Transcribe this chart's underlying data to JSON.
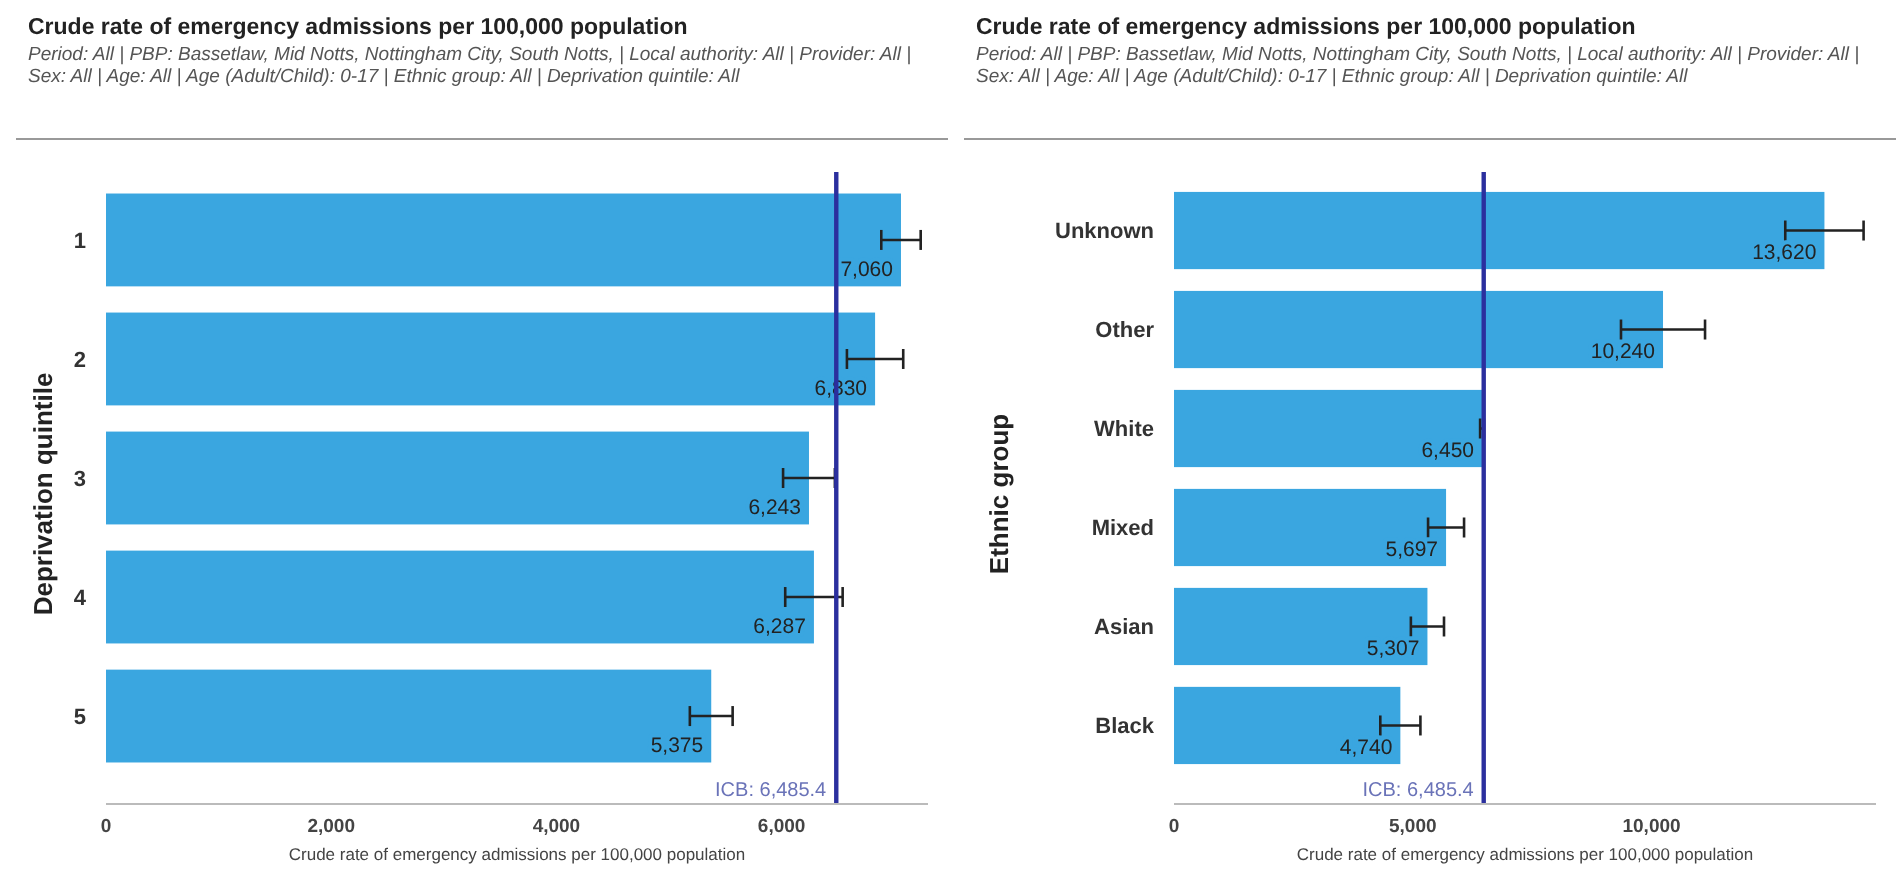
{
  "chart_data": [
    {
      "type": "bar",
      "orientation": "horizontal",
      "title": "Crude rate of emergency admissions per 100,000 population",
      "subtitle": "Period: All | PBP: Bassetlaw, Mid Notts, Nottingham City, South Notts, | Local authority: All | Provider: All | Sex: All | Age: All | Age (Adult/Child): 0-17 | Ethnic group: All | Deprivation quintile: All",
      "xlabel": "Crude rate of emergency admissions per 100,000 population",
      "ylabel": "Deprivation quintile",
      "categories": [
        "1",
        "2",
        "3",
        "4",
        "5"
      ],
      "series": [
        {
          "color": "#3aa6e0",
          "values": [
            7060,
            6830,
            6243,
            6287,
            5375
          ],
          "errors": [
            175,
            250,
            230,
            255,
            190
          ]
        }
      ],
      "value_labels": [
        "7,060",
        "6,830",
        "6,243",
        "6,287",
        "5,375"
      ],
      "xlim": [
        0,
        7300
      ],
      "xticks": [
        0,
        {
          "value": 2000,
          "label": "2,000"
        },
        {
          "value": 4000,
          "label": "4,000"
        },
        {
          "value": 6000,
          "label": "6,000"
        }
      ],
      "ref_lines": [
        {
          "axis": "x",
          "value": 6485.4,
          "label": "ICB: 6,485.4",
          "color": "#2b2f9e"
        }
      ],
      "grid": false
    },
    {
      "type": "bar",
      "orientation": "horizontal",
      "title": "Crude rate of emergency admissions per 100,000 population",
      "subtitle": "Period: All | PBP: Bassetlaw, Mid Notts, Nottingham City, South Notts, | Local authority: All | Provider: All | Sex: All | Age: All | Age (Adult/Child): 0-17 | Ethnic group: All | Deprivation quintile: All",
      "xlabel": "Crude rate of emergency admissions per 100,000 population",
      "ylabel": "Ethnic group",
      "categories": [
        "Unknown",
        "Other",
        "White",
        "Mixed",
        "Asian",
        "Black"
      ],
      "series": [
        {
          "color": "#3aa6e0",
          "values": [
            13620,
            10240,
            6450,
            5697,
            5307,
            4740
          ],
          "errors": [
            820,
            880,
            40,
            377,
            347,
            420
          ]
        }
      ],
      "value_labels": [
        "13,620",
        "10,240",
        "6,450",
        "5,697",
        "5,307",
        "4,740"
      ],
      "xlim": [
        0,
        14700
      ],
      "xticks": [
        0,
        {
          "value": 5000,
          "label": "5,000"
        },
        {
          "value": 10000,
          "label": "10,000"
        }
      ],
      "ref_lines": [
        {
          "axis": "x",
          "value": 6485.4,
          "label": "ICB: 6,485.4",
          "color": "#2b2f9e"
        }
      ],
      "grid": false
    }
  ]
}
